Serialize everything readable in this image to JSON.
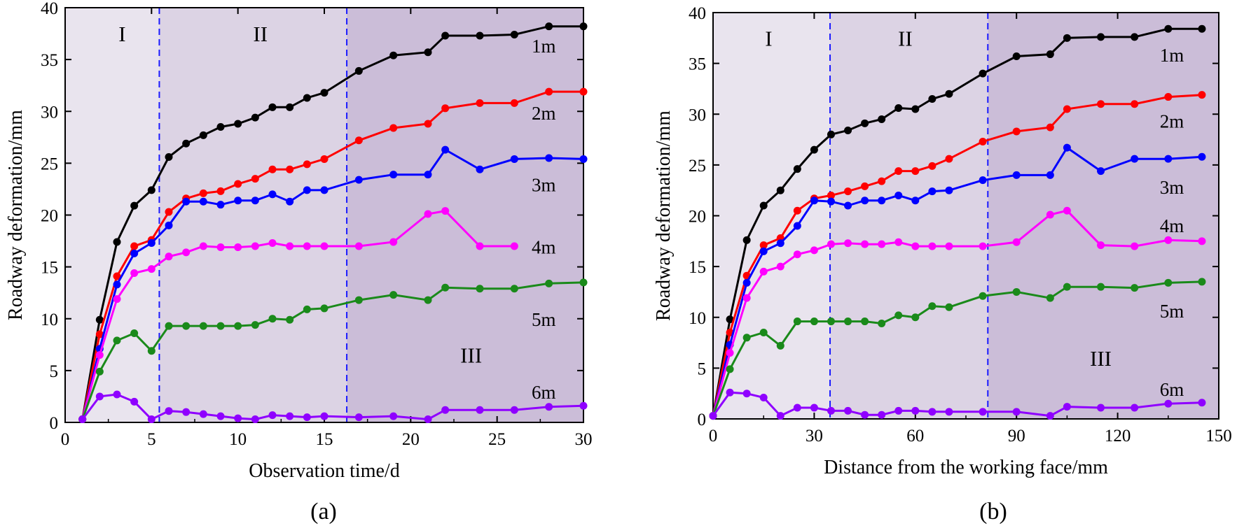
{
  "chart_data": [
    {
      "type": "line",
      "panel_label": "(a)",
      "xlabel": "Observation time/d",
      "ylabel": "Roadway deformation/mm",
      "xlim": [
        0,
        30
      ],
      "ylim": [
        0,
        40
      ],
      "xticks": [
        0,
        5,
        10,
        15,
        20,
        25,
        30
      ],
      "yticks": [
        0,
        5,
        10,
        15,
        20,
        25,
        30,
        35,
        40
      ],
      "zones": [
        {
          "label": "I",
          "from": 0,
          "to": 5.45,
          "color": "#e9e4ee",
          "label_x": 3.3,
          "label_y": 37.5
        },
        {
          "label": "II",
          "from": 5.45,
          "to": 16.3,
          "color": "#dcd3e4",
          "label_x": 11.3,
          "label_y": 37.5
        },
        {
          "label": "III",
          "from": 16.3,
          "to": 30,
          "color": "#cbbdd8",
          "label_x": 23.5,
          "label_y": 6.5
        }
      ],
      "dividers": [
        5.45,
        16.3
      ],
      "divider_color": "#1a1aff",
      "series": [
        {
          "name": "1m",
          "color": "#000000",
          "label_x": 27.0,
          "label_y": 36.3,
          "x": [
            1,
            2,
            3,
            4,
            5,
            6,
            7,
            8,
            9,
            10,
            11,
            12,
            13,
            14,
            15,
            17,
            19,
            21,
            22,
            24,
            26,
            28,
            30
          ],
          "y": [
            0.3,
            9.9,
            17.4,
            20.9,
            22.4,
            25.6,
            26.9,
            27.7,
            28.5,
            28.8,
            29.4,
            30.4,
            30.4,
            31.3,
            31.8,
            33.9,
            35.4,
            35.7,
            37.3,
            37.3,
            37.4,
            38.2,
            38.2
          ]
        },
        {
          "name": "2m",
          "color": "#ff0000",
          "label_x": 27.0,
          "label_y": 29.8,
          "x": [
            1,
            2,
            3,
            4,
            5,
            6,
            7,
            8,
            9,
            10,
            11,
            12,
            13,
            14,
            15,
            17,
            19,
            21,
            22,
            24,
            26,
            28,
            30
          ],
          "y": [
            0.3,
            8.5,
            14.1,
            17.0,
            17.6,
            20.3,
            21.6,
            22.1,
            22.3,
            23.0,
            23.5,
            24.4,
            24.4,
            24.9,
            25.4,
            27.2,
            28.4,
            28.8,
            30.3,
            30.8,
            30.8,
            31.9,
            31.9
          ]
        },
        {
          "name": "3m",
          "color": "#0000ff",
          "label_x": 27.0,
          "label_y": 22.9,
          "x": [
            1,
            2,
            3,
            4,
            5,
            6,
            7,
            8,
            9,
            10,
            11,
            12,
            13,
            14,
            15,
            17,
            19,
            21,
            22,
            24,
            26,
            28,
            30
          ],
          "y": [
            0.3,
            7.1,
            13.3,
            16.3,
            17.3,
            19.0,
            21.3,
            21.3,
            21.0,
            21.4,
            21.4,
            22.0,
            21.3,
            22.4,
            22.4,
            23.4,
            23.9,
            23.9,
            26.3,
            24.4,
            25.4,
            25.5,
            25.4
          ]
        },
        {
          "name": "4m",
          "color": "#ff00ff",
          "label_x": 27.0,
          "label_y": 16.9,
          "x": [
            1,
            2,
            3,
            4,
            5,
            6,
            7,
            8,
            9,
            10,
            11,
            12,
            13,
            14,
            15,
            17,
            19,
            21,
            22,
            24,
            26
          ],
          "y": [
            0.3,
            6.5,
            11.9,
            14.4,
            14.8,
            16.0,
            16.4,
            17.0,
            16.9,
            16.9,
            17.0,
            17.3,
            17.0,
            17.0,
            17.0,
            17.0,
            17.4,
            20.1,
            20.4,
            17.0,
            17.0
          ]
        },
        {
          "name": "5m",
          "color": "#1a8a1a",
          "label_x": 27.0,
          "label_y": 9.9,
          "x": [
            1,
            2,
            3,
            4,
            5,
            6,
            7,
            8,
            9,
            10,
            11,
            12,
            13,
            14,
            15,
            17,
            19,
            21,
            22,
            24,
            26,
            28,
            30
          ],
          "y": [
            0.3,
            4.9,
            7.9,
            8.6,
            6.9,
            9.3,
            9.3,
            9.3,
            9.3,
            9.3,
            9.4,
            10.0,
            9.9,
            10.9,
            11.0,
            11.8,
            12.3,
            11.8,
            13.0,
            12.9,
            12.9,
            13.4,
            13.5
          ]
        },
        {
          "name": "6m",
          "color": "#8f00ff",
          "label_x": 27.0,
          "label_y": 2.9,
          "x": [
            1,
            2,
            3,
            4,
            5,
            6,
            7,
            8,
            9,
            10,
            11,
            12,
            13,
            14,
            15,
            17,
            19,
            21,
            22,
            24,
            26,
            28,
            30
          ],
          "y": [
            0.3,
            2.5,
            2.7,
            2.0,
            0.3,
            1.1,
            1.0,
            0.8,
            0.6,
            0.4,
            0.3,
            0.7,
            0.6,
            0.5,
            0.6,
            0.5,
            0.6,
            0.3,
            1.2,
            1.2,
            1.2,
            1.5,
            1.6
          ]
        }
      ]
    },
    {
      "type": "line",
      "panel_label": "(b)",
      "xlabel": "Distance from the working face/mm",
      "ylabel": "Roadway deformation/mm",
      "xlim": [
        0,
        150
      ],
      "ylim": [
        0,
        40
      ],
      "xticks": [
        0,
        30,
        60,
        90,
        120,
        150
      ],
      "yticks": [
        0,
        5,
        10,
        15,
        20,
        25,
        30,
        35,
        40
      ],
      "zones": [
        {
          "label": "I",
          "from": 0,
          "to": 34.7,
          "color": "#e9e4ee",
          "label_x": 16.5,
          "label_y": 37.5
        },
        {
          "label": "II",
          "from": 34.7,
          "to": 81.5,
          "color": "#dcd3e4",
          "label_x": 57,
          "label_y": 37.5
        },
        {
          "label": "III",
          "from": 81.5,
          "to": 150,
          "color": "#cbbdd8",
          "label_x": 115,
          "label_y": 6.0
        }
      ],
      "dividers": [
        34.7,
        81.5
      ],
      "divider_color": "#1a1aff",
      "series": [
        {
          "name": "1m",
          "color": "#000000",
          "label_x": 132.5,
          "label_y": 35.8,
          "x": [
            0,
            5,
            10,
            15,
            20,
            25,
            30,
            35,
            40,
            45,
            50,
            55,
            60,
            65,
            70,
            80,
            90,
            100,
            105,
            115,
            125,
            135,
            145
          ],
          "y": [
            0.3,
            9.8,
            17.6,
            21.0,
            22.5,
            24.6,
            26.5,
            28.0,
            28.4,
            29.1,
            29.5,
            30.6,
            30.5,
            31.5,
            32.0,
            34.0,
            35.7,
            35.9,
            37.5,
            37.6,
            37.6,
            38.4,
            38.4
          ]
        },
        {
          "name": "2m",
          "color": "#ff0000",
          "label_x": 132.5,
          "label_y": 29.3,
          "x": [
            0,
            5,
            10,
            15,
            20,
            25,
            30,
            35,
            40,
            45,
            50,
            55,
            60,
            65,
            70,
            80,
            90,
            100,
            105,
            115,
            125,
            135,
            145
          ],
          "y": [
            0.3,
            8.5,
            14.1,
            17.1,
            17.8,
            20.5,
            21.7,
            22.0,
            22.4,
            22.9,
            23.4,
            24.4,
            24.4,
            24.9,
            25.6,
            27.3,
            28.3,
            28.7,
            30.5,
            31.0,
            31.0,
            31.7,
            31.9
          ]
        },
        {
          "name": "3m",
          "color": "#0000ff",
          "label_x": 132.5,
          "label_y": 22.8,
          "x": [
            0,
            5,
            10,
            15,
            20,
            25,
            30,
            35,
            40,
            45,
            50,
            55,
            60,
            65,
            70,
            80,
            90,
            100,
            105,
            115,
            125,
            135,
            145
          ],
          "y": [
            0.3,
            7.3,
            13.4,
            16.5,
            17.3,
            19.0,
            21.5,
            21.4,
            21.0,
            21.5,
            21.5,
            22.0,
            21.5,
            22.4,
            22.5,
            23.5,
            24.0,
            24.0,
            26.7,
            24.4,
            25.6,
            25.6,
            25.8
          ]
        },
        {
          "name": "4m",
          "color": "#ff00ff",
          "label_x": 132.5,
          "label_y": 19.0,
          "x": [
            0,
            5,
            10,
            15,
            20,
            25,
            30,
            35,
            40,
            45,
            50,
            55,
            60,
            65,
            70,
            80,
            90,
            100,
            105,
            115,
            125,
            135,
            145
          ],
          "y": [
            0.3,
            6.5,
            11.9,
            14.5,
            15.0,
            16.2,
            16.6,
            17.2,
            17.3,
            17.2,
            17.2,
            17.4,
            17.0,
            17.0,
            17.0,
            17.0,
            17.4,
            20.1,
            20.5,
            17.1,
            17.0,
            17.6,
            17.5
          ]
        },
        {
          "name": "5m",
          "color": "#1a8a1a",
          "label_x": 132.5,
          "label_y": 10.6,
          "x": [
            0,
            5,
            10,
            15,
            20,
            25,
            30,
            35,
            40,
            45,
            50,
            55,
            60,
            65,
            70,
            80,
            90,
            100,
            105,
            115,
            125,
            135,
            145
          ],
          "y": [
            0.3,
            4.9,
            8.0,
            8.5,
            7.2,
            9.6,
            9.6,
            9.6,
            9.6,
            9.6,
            9.4,
            10.2,
            10.0,
            11.1,
            11.0,
            12.1,
            12.5,
            11.9,
            13.0,
            13.0,
            12.9,
            13.4,
            13.5
          ]
        },
        {
          "name": "6m",
          "color": "#8f00ff",
          "label_x": 132.5,
          "label_y": 2.9,
          "x": [
            0,
            5,
            10,
            15,
            20,
            25,
            30,
            35,
            40,
            45,
            50,
            55,
            60,
            65,
            70,
            80,
            90,
            100,
            105,
            115,
            125,
            135,
            145
          ],
          "y": [
            0.3,
            2.6,
            2.5,
            2.1,
            0.3,
            1.1,
            1.1,
            0.8,
            0.8,
            0.4,
            0.4,
            0.8,
            0.8,
            0.7,
            0.7,
            0.7,
            0.7,
            0.3,
            1.2,
            1.1,
            1.1,
            1.5,
            1.6
          ]
        }
      ]
    }
  ]
}
